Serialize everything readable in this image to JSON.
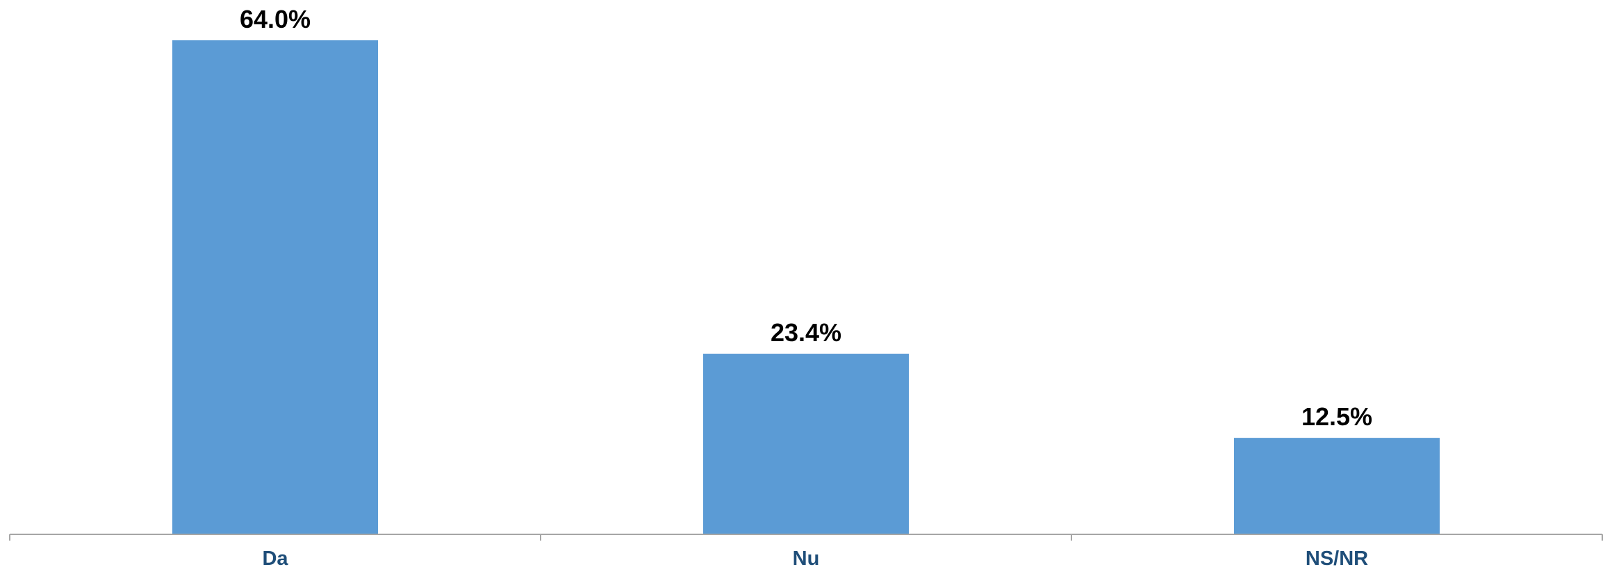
{
  "chart_data": {
    "type": "bar",
    "categories": [
      "Da",
      "Nu",
      "NS/NR"
    ],
    "values": [
      64.0,
      23.4,
      12.5
    ],
    "value_labels": [
      "64.0%",
      "23.4%",
      "12.5%"
    ],
    "unit": "%",
    "ylim": [
      0,
      64.0
    ],
    "grid": false,
    "legend": "none",
    "colors": {
      "bar": "#5b9bd5",
      "axis": "#a6a6a6",
      "category_text": "#1f4e79",
      "value_text": "#000000"
    }
  }
}
